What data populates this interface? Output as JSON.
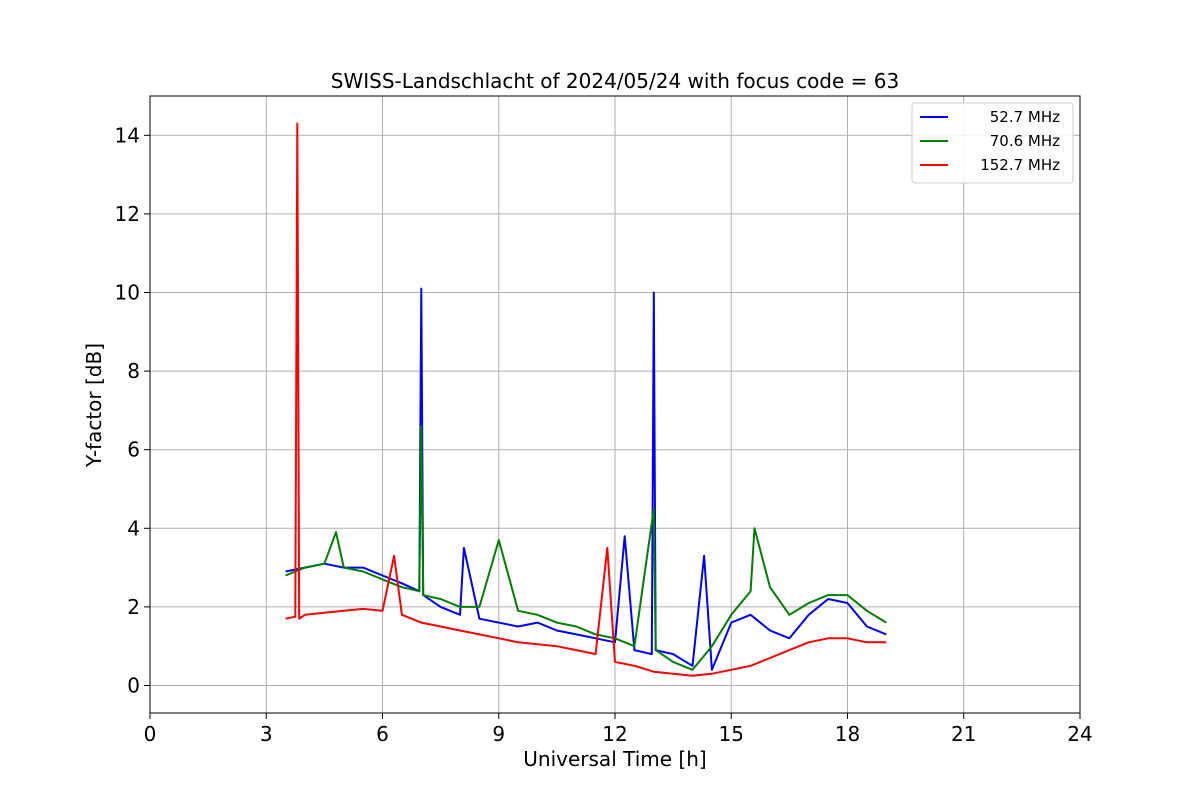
{
  "chart_data": {
    "type": "line",
    "title": "SWISS-Landschlacht of 2024/05/24 with focus code = 63",
    "xlabel": "Universal Time [h]",
    "ylabel": "Y-factor [dB]",
    "xlim": [
      0,
      24
    ],
    "ylim": [
      -0.7,
      15
    ],
    "xticks": [
      0,
      3,
      6,
      9,
      12,
      15,
      18,
      21,
      24
    ],
    "yticks": [
      0,
      2,
      4,
      6,
      8,
      10,
      12,
      14
    ],
    "grid": true,
    "legend_position": "top-right",
    "series": [
      {
        "name": "52.7 MHz",
        "color": "#0000ff",
        "x": [
          3.5,
          4.0,
          4.5,
          5.0,
          5.5,
          6.0,
          6.5,
          6.95,
          7.0,
          7.05,
          7.5,
          8.0,
          8.1,
          8.5,
          9.0,
          9.5,
          10.0,
          10.5,
          11.0,
          11.5,
          12.0,
          12.25,
          12.5,
          12.95,
          13.0,
          13.05,
          13.5,
          14.0,
          14.3,
          14.5,
          15.0,
          15.5,
          16.0,
          16.5,
          17.0,
          17.5,
          18.0,
          18.5,
          19.0
        ],
        "y": [
          2.9,
          3.0,
          3.1,
          3.0,
          3.0,
          2.8,
          2.6,
          2.4,
          10.1,
          2.3,
          2.0,
          1.8,
          3.5,
          1.7,
          1.6,
          1.5,
          1.6,
          1.4,
          1.3,
          1.2,
          1.1,
          3.8,
          0.9,
          0.8,
          10.0,
          0.9,
          0.8,
          0.5,
          3.3,
          0.4,
          1.6,
          1.8,
          1.4,
          1.2,
          1.8,
          2.2,
          2.1,
          1.5,
          1.3
        ]
      },
      {
        "name": "70.6 MHz",
        "color": "#008000",
        "x": [
          3.5,
          4.0,
          4.5,
          4.8,
          5.0,
          5.5,
          6.0,
          6.5,
          6.95,
          7.0,
          7.05,
          7.5,
          8.0,
          8.5,
          9.0,
          9.5,
          10.0,
          10.5,
          11.0,
          11.5,
          12.0,
          12.5,
          13.0,
          13.05,
          13.5,
          14.0,
          14.5,
          15.0,
          15.5,
          15.6,
          16.0,
          16.5,
          17.0,
          17.5,
          18.0,
          18.5,
          19.0
        ],
        "y": [
          2.8,
          3.0,
          3.1,
          3.9,
          3.0,
          2.9,
          2.7,
          2.5,
          2.4,
          6.6,
          2.3,
          2.2,
          2.0,
          2.0,
          3.7,
          1.9,
          1.8,
          1.6,
          1.5,
          1.3,
          1.2,
          1.0,
          4.5,
          0.9,
          0.6,
          0.4,
          1.0,
          1.8,
          2.4,
          4.0,
          2.5,
          1.8,
          2.1,
          2.3,
          2.3,
          1.9,
          1.6
        ]
      },
      {
        "name": "152.7 MHz",
        "color": "#ff0000",
        "x": [
          3.5,
          3.75,
          3.8,
          3.85,
          4.0,
          4.5,
          5.0,
          5.5,
          6.0,
          6.3,
          6.5,
          7.0,
          7.5,
          8.0,
          8.5,
          9.0,
          9.5,
          10.0,
          10.5,
          11.0,
          11.5,
          11.8,
          12.0,
          12.5,
          13.0,
          13.5,
          14.0,
          14.5,
          15.0,
          15.5,
          16.0,
          16.5,
          17.0,
          17.5,
          18.0,
          18.5,
          19.0
        ],
        "y": [
          1.7,
          1.75,
          14.3,
          1.7,
          1.8,
          1.85,
          1.9,
          1.95,
          1.9,
          3.3,
          1.8,
          1.6,
          1.5,
          1.4,
          1.3,
          1.2,
          1.1,
          1.05,
          1.0,
          0.9,
          0.8,
          3.5,
          0.6,
          0.5,
          0.35,
          0.3,
          0.25,
          0.3,
          0.4,
          0.5,
          0.7,
          0.9,
          1.1,
          1.2,
          1.2,
          1.1,
          1.1
        ]
      }
    ]
  }
}
